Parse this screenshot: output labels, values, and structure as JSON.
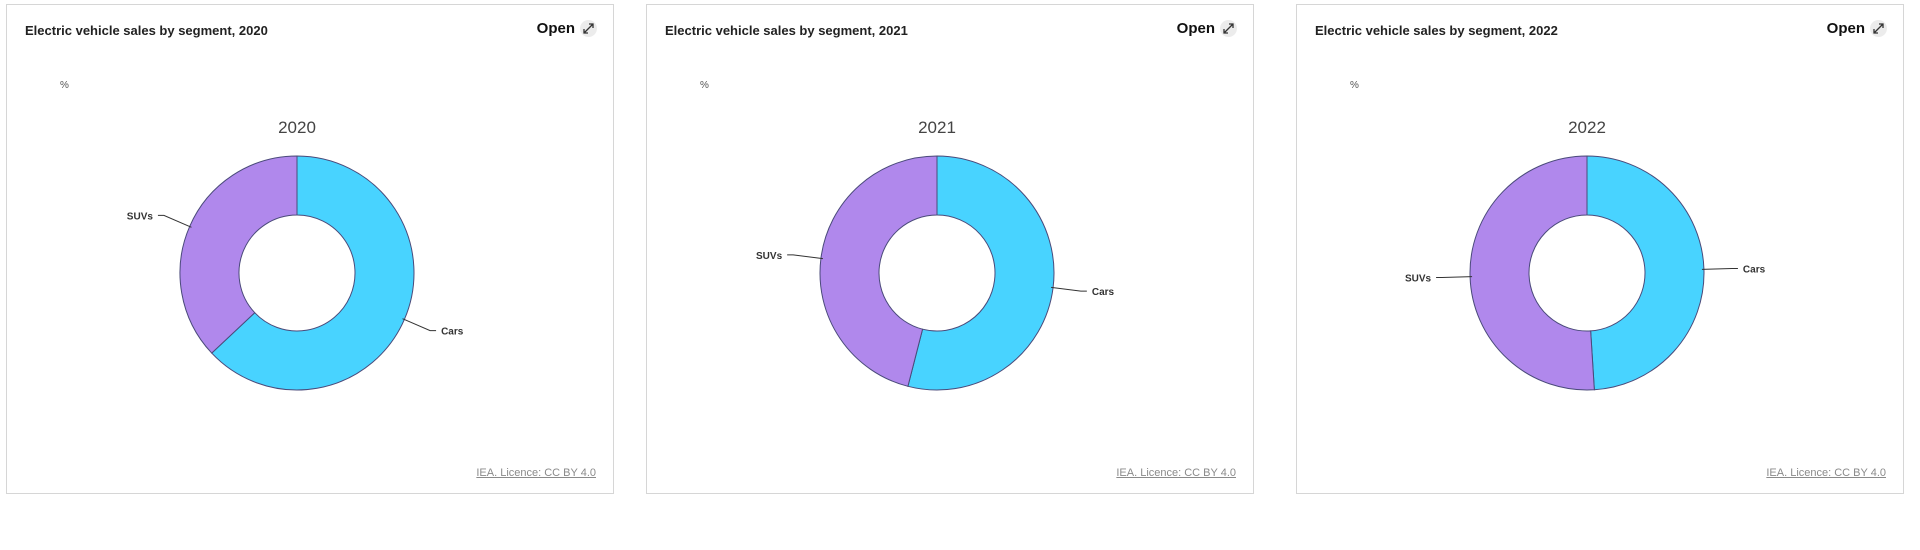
{
  "open_label": "Open",
  "colors": {
    "cars": "#48d3ff",
    "suvs": "#b088ec",
    "stroke": "#4a4a7a"
  },
  "icons": {
    "open": "expand-arrows-icon"
  },
  "cards": [
    {
      "title": "Electric vehicle sales by segment, 2020",
      "unit": "%",
      "credit": "IEA. Licence: CC BY 4.0",
      "chart_data": {
        "type": "pie",
        "donut": true,
        "title": "2020",
        "categories": [
          "Cars",
          "SUVs"
        ],
        "values": [
          63,
          37
        ],
        "data_labels": [
          "Cars",
          "SUVs"
        ]
      }
    },
    {
      "title": "Electric vehicle sales by segment, 2021",
      "unit": "%",
      "credit": "IEA. Licence: CC BY 4.0",
      "chart_data": {
        "type": "pie",
        "donut": true,
        "title": "2021",
        "categories": [
          "Cars",
          "SUVs"
        ],
        "values": [
          54,
          46
        ],
        "data_labels": [
          "Cars",
          "SUVs"
        ]
      }
    },
    {
      "title": "Electric vehicle sales by segment, 2022",
      "unit": "%",
      "credit": "IEA. Licence: CC BY 4.0",
      "chart_data": {
        "type": "pie",
        "donut": true,
        "title": "2022",
        "categories": [
          "Cars",
          "SUVs"
        ],
        "values": [
          49,
          51
        ],
        "data_labels": [
          "Cars",
          "SUVs"
        ]
      }
    }
  ],
  "chart_data": [
    {
      "type": "pie",
      "title": "2020",
      "categories": [
        "Cars",
        "SUVs"
      ],
      "values": [
        63,
        37
      ]
    },
    {
      "type": "pie",
      "title": "2021",
      "categories": [
        "Cars",
        "SUVs"
      ],
      "values": [
        54,
        46
      ]
    },
    {
      "type": "pie",
      "title": "2022",
      "categories": [
        "Cars",
        "SUVs"
      ],
      "values": [
        49,
        51
      ]
    }
  ]
}
